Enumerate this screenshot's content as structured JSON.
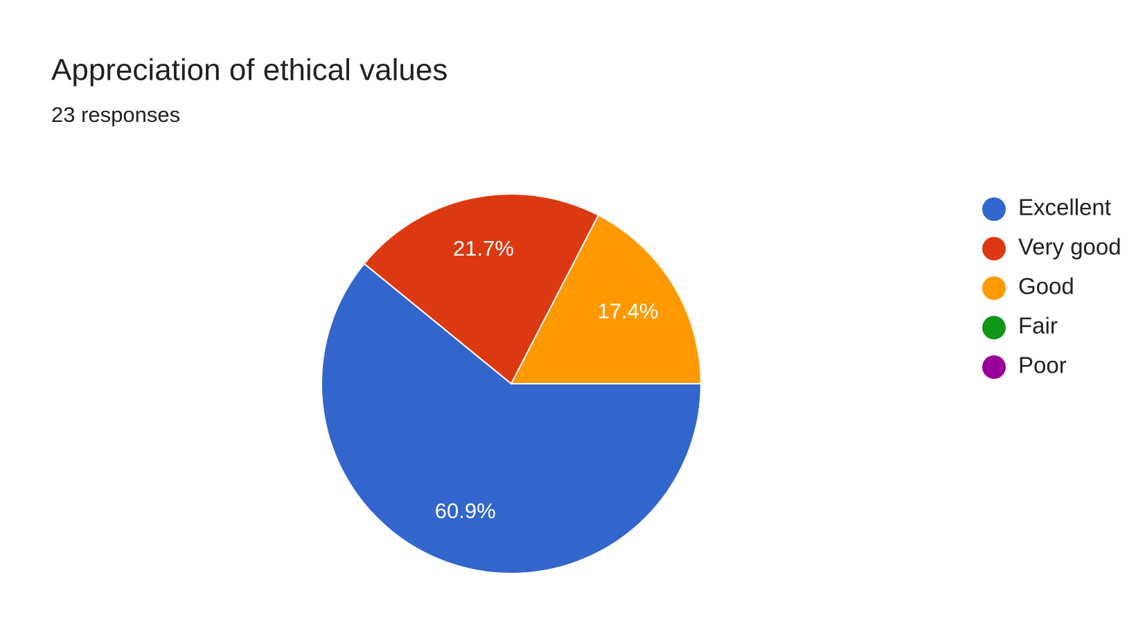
{
  "chart_data": {
    "type": "pie",
    "title": "Appreciation of ethical values",
    "subtitle": "23 responses",
    "categories": [
      "Excellent",
      "Very good",
      "Good",
      "Fair",
      "Poor"
    ],
    "values": [
      60.9,
      21.7,
      17.4,
      0,
      0
    ],
    "value_labels": [
      "60.9%",
      "21.7%",
      "17.4%",
      null,
      null
    ],
    "colors": [
      "#3366cc",
      "#dc3912",
      "#ff9900",
      "#109618",
      "#990099"
    ],
    "legend": "right"
  }
}
